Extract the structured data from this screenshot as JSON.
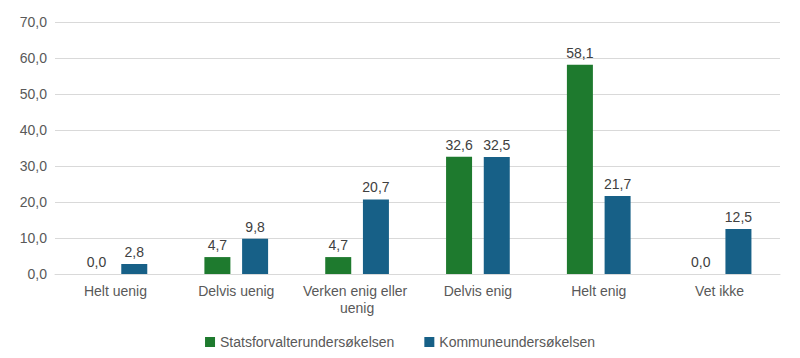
{
  "chart_data": {
    "type": "bar",
    "categories": [
      "Helt uenig",
      "Delvis uenig",
      "Verken enig eller uenig",
      "Delvis enig",
      "Helt enig",
      "Vet ikke"
    ],
    "series": [
      {
        "name": "Statsforvalterundersøkelsen",
        "color": "#1e7a2e",
        "values": [
          0.0,
          4.7,
          4.7,
          32.6,
          58.1,
          0.0
        ],
        "value_labels": [
          "0,0",
          "4,7",
          "4,7",
          "32,6",
          "58,1",
          "0,0"
        ]
      },
      {
        "name": "Kommuneundersøkelsen",
        "color": "#176087",
        "values": [
          2.8,
          9.8,
          20.7,
          32.5,
          21.7,
          12.5
        ],
        "value_labels": [
          "2,8",
          "9,8",
          "20,7",
          "32,5",
          "21,7",
          "12,5"
        ]
      }
    ],
    "ylim": [
      0,
      70
    ],
    "yticks": [
      {
        "value": 0,
        "label": "0,0"
      },
      {
        "value": 10,
        "label": "10,0"
      },
      {
        "value": 20,
        "label": "20,0"
      },
      {
        "value": 30,
        "label": "30,0"
      },
      {
        "value": 40,
        "label": "40,0"
      },
      {
        "value": 50,
        "label": "50,0"
      },
      {
        "value": 60,
        "label": "60,0"
      },
      {
        "value": 70,
        "label": "70,0"
      }
    ],
    "grid": true,
    "legend": "bottom",
    "data_labels": true
  }
}
